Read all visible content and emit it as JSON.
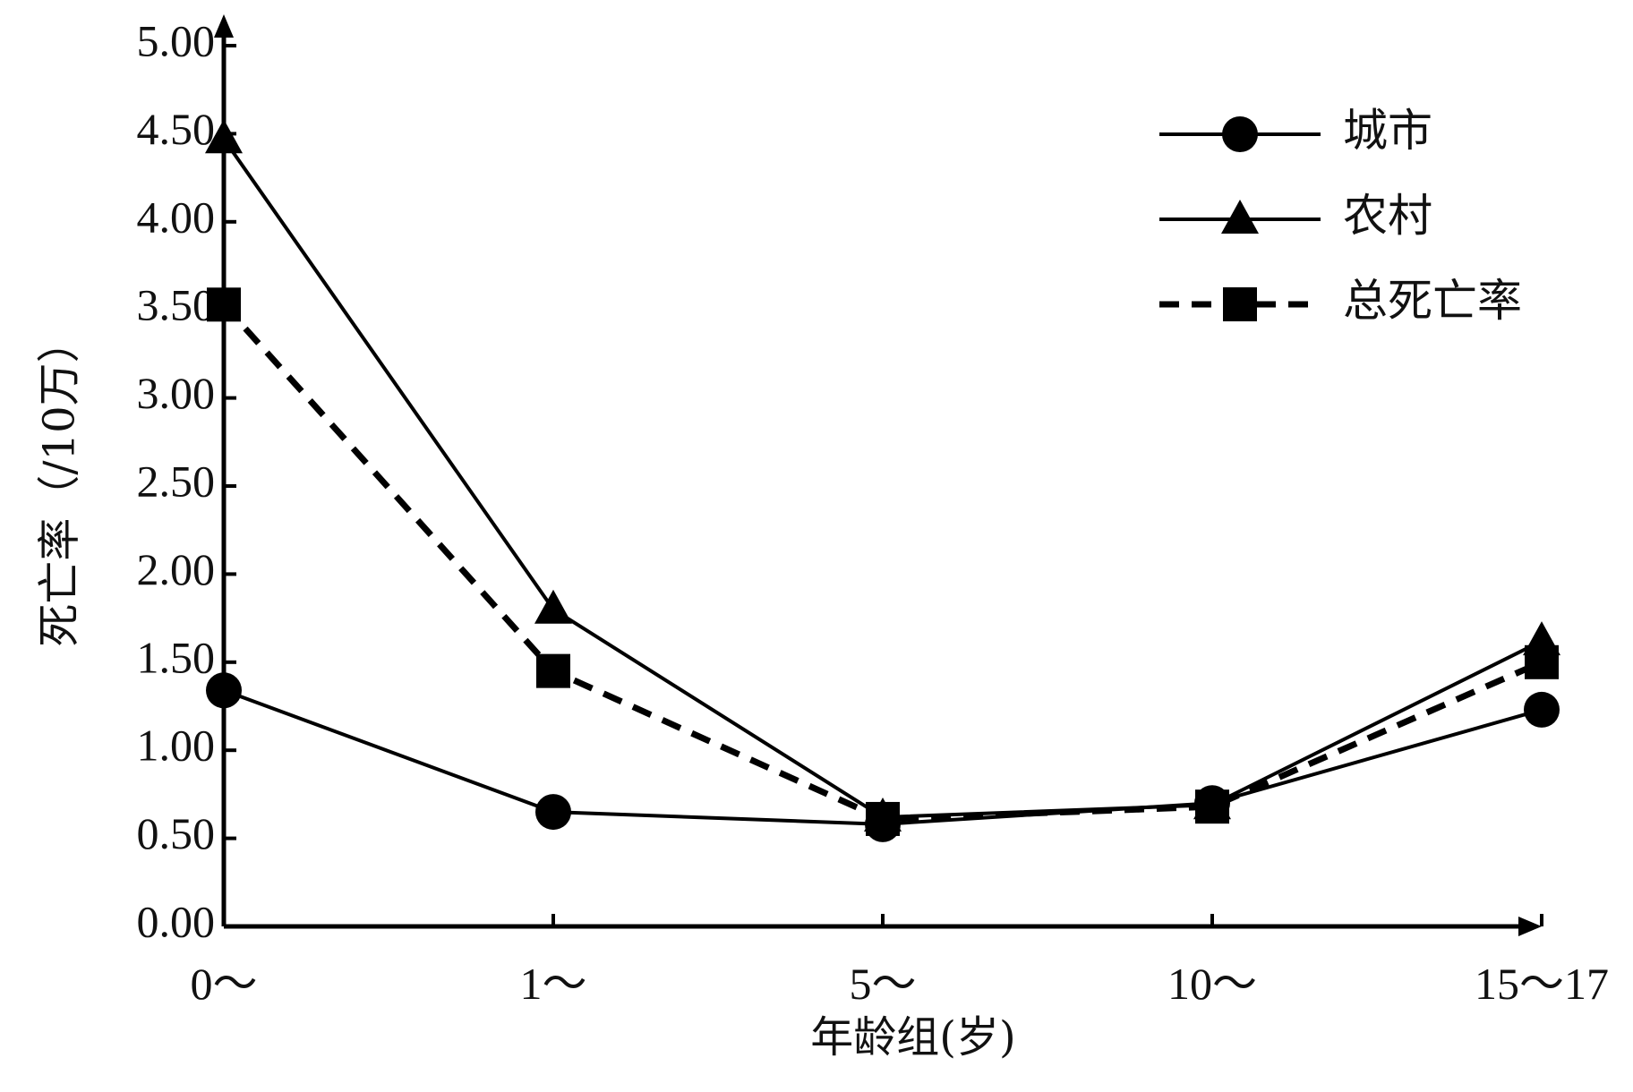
{
  "chart_data": {
    "type": "line",
    "xlabel": "年龄组(岁)",
    "ylabel": "死亡率（/10万）",
    "categories": [
      "0～",
      "1～",
      "5～",
      "10～",
      "15～17"
    ],
    "ylim": [
      0,
      5
    ],
    "yticks": [
      "0.00",
      "0.50",
      "1.00",
      "1.50",
      "2.00",
      "2.50",
      "3.00",
      "3.50",
      "4.00",
      "4.50",
      "5.00"
    ],
    "grid": false,
    "legend_position": "top-right",
    "series": [
      {
        "name": "城市",
        "marker": "circle",
        "line": "solid",
        "values": [
          1.34,
          0.65,
          0.58,
          0.7,
          1.23
        ]
      },
      {
        "name": "农村",
        "marker": "triangle",
        "line": "solid",
        "values": [
          4.47,
          1.8,
          0.62,
          0.69,
          1.62
        ]
      },
      {
        "name": "总死亡率",
        "marker": "square",
        "line": "dashed",
        "values": [
          3.53,
          1.45,
          0.61,
          0.68,
          1.5
        ]
      }
    ]
  }
}
